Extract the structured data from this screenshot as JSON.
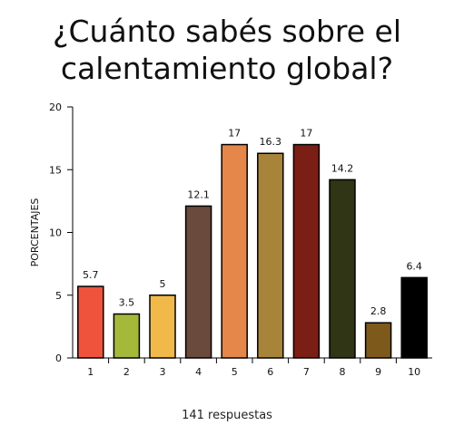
{
  "chart_data": {
    "type": "bar",
    "title_lines": [
      "¿Cuánto sabés sobre el",
      "calentamiento global?"
    ],
    "ylabel": "PORCENTAJES",
    "xlabel": "",
    "categories": [
      "1",
      "2",
      "3",
      "4",
      "5",
      "6",
      "7",
      "8",
      "9",
      "10"
    ],
    "values": [
      5.7,
      3.5,
      5,
      12.1,
      17,
      16.3,
      17,
      14.2,
      2.8,
      6.4
    ],
    "value_labels": [
      "5.7",
      "3.5",
      "5",
      "12.1",
      "17",
      "16.3",
      "17",
      "14.2",
      "2.8",
      "6.4"
    ],
    "colors": [
      "#ef533c",
      "#a4b83a",
      "#f0b94a",
      "#6a4a3c",
      "#e5874a",
      "#a8833a",
      "#7a1e16",
      "#2f3515",
      "#7d5a1c",
      "#000000"
    ],
    "ylim": [
      0,
      20
    ],
    "yticks": [
      0,
      5,
      10,
      15,
      20
    ],
    "grid": false,
    "legend": "none"
  },
  "footnote": "141 respuestas"
}
